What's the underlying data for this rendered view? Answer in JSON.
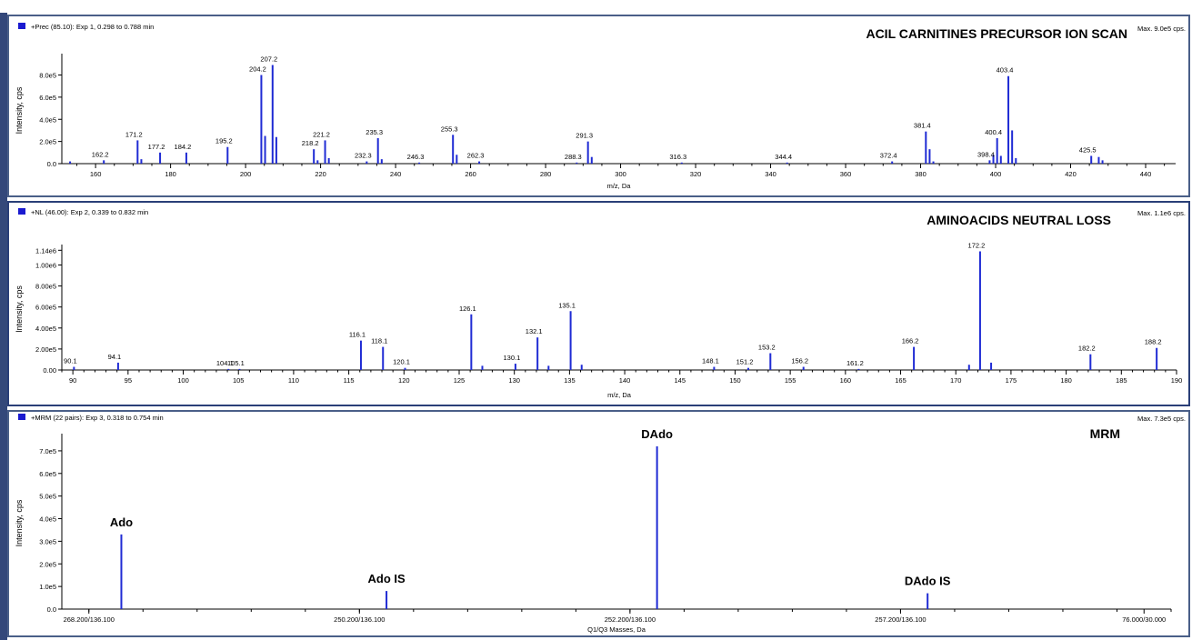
{
  "colors": {
    "bar": "#1f2bd4",
    "frame": "#4a5f88",
    "axis": "#000000"
  },
  "chart_data": [
    {
      "type": "bar",
      "header": "+Prec (85.10): Exp 1, 0.298 to 0.788 min",
      "title": "ACIL CARNITINES PRECURSOR ION SCAN",
      "max_label": "Max. 9.0e5 cps.",
      "xlabel": "m/z, Da",
      "ylabel": "Intensity, cps",
      "xlim": [
        151,
        448
      ],
      "ylim": [
        0,
        9.6
      ],
      "y_unit": "e5",
      "xticks": [
        "160",
        "180",
        "200",
        "220",
        "240",
        "260",
        "280",
        "300",
        "320",
        "340",
        "360",
        "380",
        "400",
        "420",
        "440"
      ],
      "yticks": [
        "0.0",
        "2.0e5",
        "4.0e5",
        "6.0e5",
        "8.0e5"
      ],
      "ytick_values": [
        0,
        2,
        4,
        6,
        8
      ],
      "peaks": [
        {
          "x": 153.2,
          "y": 0.2
        },
        {
          "x": 162.2,
          "y": 0.3
        },
        {
          "x": 171.2,
          "y": 2.1
        },
        {
          "x": 172.2,
          "y": 0.4
        },
        {
          "x": 177.2,
          "y": 1.0
        },
        {
          "x": 184.2,
          "y": 1.0
        },
        {
          "x": 195.2,
          "y": 1.5
        },
        {
          "x": 204.2,
          "y": 8.0
        },
        {
          "x": 205.2,
          "y": 2.5
        },
        {
          "x": 207.2,
          "y": 8.9
        },
        {
          "x": 208.2,
          "y": 2.4
        },
        {
          "x": 218.2,
          "y": 1.3
        },
        {
          "x": 219.2,
          "y": 0.3
        },
        {
          "x": 221.2,
          "y": 2.1
        },
        {
          "x": 222.2,
          "y": 0.5
        },
        {
          "x": 232.3,
          "y": 0.2
        },
        {
          "x": 235.3,
          "y": 2.3
        },
        {
          "x": 236.3,
          "y": 0.4
        },
        {
          "x": 246.3,
          "y": 0.1
        },
        {
          "x": 255.3,
          "y": 2.6
        },
        {
          "x": 256.3,
          "y": 0.8
        },
        {
          "x": 262.3,
          "y": 0.2
        },
        {
          "x": 288.3,
          "y": 0.1
        },
        {
          "x": 291.3,
          "y": 2.0
        },
        {
          "x": 292.3,
          "y": 0.6
        },
        {
          "x": 316.3,
          "y": 0.1
        },
        {
          "x": 344.4,
          "y": 0.1
        },
        {
          "x": 372.4,
          "y": 0.2
        },
        {
          "x": 381.4,
          "y": 2.9
        },
        {
          "x": 382.4,
          "y": 1.3
        },
        {
          "x": 383.4,
          "y": 0.2
        },
        {
          "x": 398.4,
          "y": 0.3
        },
        {
          "x": 399.4,
          "y": 0.8
        },
        {
          "x": 400.4,
          "y": 2.3
        },
        {
          "x": 401.4,
          "y": 0.7
        },
        {
          "x": 403.4,
          "y": 7.9
        },
        {
          "x": 404.4,
          "y": 3.0
        },
        {
          "x": 405.4,
          "y": 0.5
        },
        {
          "x": 425.5,
          "y": 0.7
        },
        {
          "x": 427.5,
          "y": 0.6
        },
        {
          "x": 428.5,
          "y": 0.3
        }
      ],
      "labels": [
        {
          "x": 162.2,
          "text": "162.2"
        },
        {
          "x": 171.2,
          "text": "171.2"
        },
        {
          "x": 177.2,
          "text": "177.2"
        },
        {
          "x": 184.2,
          "text": "184.2"
        },
        {
          "x": 195.2,
          "text": "195.2"
        },
        {
          "x": 204.2,
          "text": "204.2"
        },
        {
          "x": 207.2,
          "text": "207.2"
        },
        {
          "x": 218.2,
          "text": "218.2"
        },
        {
          "x": 221.2,
          "text": "221.2"
        },
        {
          "x": 232.3,
          "text": "232.3"
        },
        {
          "x": 235.3,
          "text": "235.3"
        },
        {
          "x": 246.3,
          "text": "246.3"
        },
        {
          "x": 255.3,
          "text": "255.3"
        },
        {
          "x": 262.3,
          "text": "262.3"
        },
        {
          "x": 288.3,
          "text": "288.3"
        },
        {
          "x": 291.3,
          "text": "291.3"
        },
        {
          "x": 316.3,
          "text": "316.3"
        },
        {
          "x": 344.4,
          "text": "344.4"
        },
        {
          "x": 372.4,
          "text": "372.4"
        },
        {
          "x": 381.4,
          "text": "381.4"
        },
        {
          "x": 398.4,
          "text": "398.4"
        },
        {
          "x": 400.4,
          "text": "400.4"
        },
        {
          "x": 403.4,
          "text": "403.4"
        },
        {
          "x": 425.5,
          "text": "425.5"
        }
      ]
    },
    {
      "type": "bar",
      "header": "+NL (46.00): Exp 2, 0.339 to 0.832 min",
      "title": "AMINOACIDS NEUTRAL LOSS",
      "max_label": "Max. 1.1e6 cps.",
      "xlabel": "m/z, Da",
      "ylabel": "Intensity, cps",
      "xlim": [
        89,
        190
      ],
      "ylim": [
        0,
        11.6
      ],
      "y_unit": "e5",
      "xticks": [
        "90",
        "95",
        "100",
        "105",
        "110",
        "115",
        "120",
        "125",
        "130",
        "135",
        "140",
        "145",
        "150",
        "155",
        "160",
        "165",
        "170",
        "175",
        "180",
        "185",
        "190"
      ],
      "yticks": [
        "0.00",
        "2.00e5",
        "4.00e5",
        "6.00e5",
        "8.00e5",
        "1.00e6",
        "1.14e6"
      ],
      "ytick_values": [
        0,
        2,
        4,
        6,
        8,
        10,
        11.4
      ],
      "peaks": [
        {
          "x": 90.1,
          "y": 0.3
        },
        {
          "x": 94.1,
          "y": 0.7
        },
        {
          "x": 104.1,
          "y": 0.1
        },
        {
          "x": 105.1,
          "y": 0.1
        },
        {
          "x": 116.1,
          "y": 2.8
        },
        {
          "x": 118.1,
          "y": 2.2
        },
        {
          "x": 120.1,
          "y": 0.2
        },
        {
          "x": 126.1,
          "y": 5.3
        },
        {
          "x": 127.1,
          "y": 0.4
        },
        {
          "x": 130.1,
          "y": 0.6
        },
        {
          "x": 132.1,
          "y": 3.1
        },
        {
          "x": 133.1,
          "y": 0.4
        },
        {
          "x": 135.1,
          "y": 5.6
        },
        {
          "x": 136.1,
          "y": 0.5
        },
        {
          "x": 148.1,
          "y": 0.3
        },
        {
          "x": 151.2,
          "y": 0.2
        },
        {
          "x": 153.2,
          "y": 1.6
        },
        {
          "x": 156.2,
          "y": 0.3
        },
        {
          "x": 161.2,
          "y": 0.1
        },
        {
          "x": 166.2,
          "y": 2.2
        },
        {
          "x": 171.2,
          "y": 0.5
        },
        {
          "x": 172.2,
          "y": 11.3
        },
        {
          "x": 173.2,
          "y": 0.7
        },
        {
          "x": 182.2,
          "y": 1.5
        },
        {
          "x": 188.2,
          "y": 2.1
        }
      ],
      "labels": [
        {
          "x": 90.1,
          "text": "90.1"
        },
        {
          "x": 94.1,
          "text": "94.1"
        },
        {
          "x": 104.1,
          "text": "104.1"
        },
        {
          "x": 105.1,
          "text": "105.1"
        },
        {
          "x": 116.1,
          "text": "116.1"
        },
        {
          "x": 118.1,
          "text": "118.1"
        },
        {
          "x": 120.1,
          "text": "120.1"
        },
        {
          "x": 126.1,
          "text": "126.1"
        },
        {
          "x": 130.1,
          "text": "130.1"
        },
        {
          "x": 132.1,
          "text": "132.1"
        },
        {
          "x": 135.1,
          "text": "135.1"
        },
        {
          "x": 148.1,
          "text": "148.1"
        },
        {
          "x": 151.2,
          "text": "151.2"
        },
        {
          "x": 153.2,
          "text": "153.2"
        },
        {
          "x": 156.2,
          "text": "156.2"
        },
        {
          "x": 161.2,
          "text": "161.2"
        },
        {
          "x": 166.2,
          "text": "166.2"
        },
        {
          "x": 172.2,
          "text": "172.2"
        },
        {
          "x": 182.2,
          "text": "182.2"
        },
        {
          "x": 188.2,
          "text": "188.2"
        }
      ]
    },
    {
      "type": "bar",
      "header": "+MRM (22 pairs): Exp 3, 0.318 to 0.754 min",
      "title": "MRM",
      "max_label": "Max. 7.3e5 cps.",
      "xlabel": "Q1/Q3 Masses, Da",
      "ylabel": "Intensity, cps",
      "xlim": [
        0,
        20.5
      ],
      "ylim": [
        0,
        7.6
      ],
      "y_unit": "e5",
      "xticks": [
        {
          "pos": 0.5,
          "text": "268.200/136.100"
        },
        {
          "pos": 5.5,
          "text": "250.200/136.100"
        },
        {
          "pos": 10.5,
          "text": "252.200/136.100"
        },
        {
          "pos": 15.5,
          "text": "257.200/136.100"
        },
        {
          "pos": 20.0,
          "text": "76.000/30.000"
        }
      ],
      "yticks": [
        "0.0",
        "1.0e5",
        "2.0e5",
        "3.0e5",
        "4.0e5",
        "5.0e5",
        "6.0e5",
        "7.0e5"
      ],
      "ytick_values": [
        0,
        1,
        2,
        3,
        4,
        5,
        6,
        7
      ],
      "peaks": [
        {
          "x": 1.1,
          "y": 3.3,
          "name": "Ado"
        },
        {
          "x": 6.0,
          "y": 0.8,
          "name": "Ado IS"
        },
        {
          "x": 11.0,
          "y": 7.2,
          "name": "DAdo"
        },
        {
          "x": 16.0,
          "y": 0.7,
          "name": "DAdo IS"
        }
      ]
    }
  ]
}
